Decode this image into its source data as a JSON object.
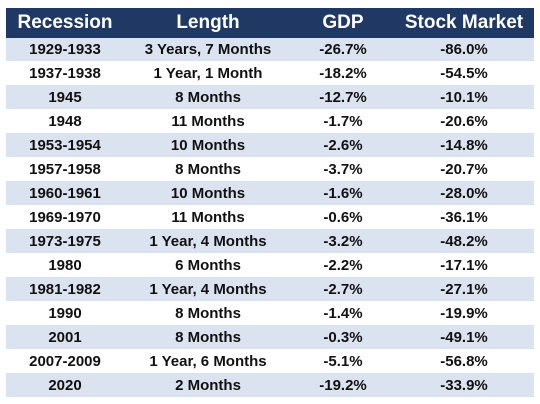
{
  "headers": [
    "Recession",
    "Length",
    "GDP",
    "Stock Market"
  ],
  "rows": [
    [
      "1929-1933",
      "3 Years, 7 Months",
      "-26.7%",
      "-86.0%"
    ],
    [
      "1937-1938",
      "1 Year, 1 Month",
      "-18.2%",
      "-54.5%"
    ],
    [
      "1945",
      "8 Months",
      "-12.7%",
      "-10.1%"
    ],
    [
      "1948",
      "11 Months",
      "-1.7%",
      "-20.6%"
    ],
    [
      "1953-1954",
      "10 Months",
      "-2.6%",
      "-14.8%"
    ],
    [
      "1957-1958",
      "8 Months",
      "-3.7%",
      "-20.7%"
    ],
    [
      "1960-1961",
      "10 Months",
      "-1.6%",
      "-28.0%"
    ],
    [
      "1969-1970",
      "11 Months",
      "-0.6%",
      "-36.1%"
    ],
    [
      "1973-1975",
      "1 Year, 4 Months",
      "-3.2%",
      "-48.2%"
    ],
    [
      "1980",
      "6 Months",
      "-2.2%",
      "-17.1%"
    ],
    [
      "1981-1982",
      "1 Year, 4 Months",
      "-2.7%",
      "-27.1%"
    ],
    [
      "1990",
      "8 Months",
      "-1.4%",
      "-19.9%"
    ],
    [
      "2001",
      "8 Months",
      "-0.3%",
      "-49.1%"
    ],
    [
      "2007-2009",
      "1 Year, 6 Months",
      "-5.1%",
      "-56.8%"
    ],
    [
      "2020",
      "2 Months",
      "-19.2%",
      "-33.9%"
    ]
  ],
  "colors": {
    "header_bg": "#1f3864",
    "header_text": "#ffffff",
    "band_bg": "#dbe3f1"
  }
}
